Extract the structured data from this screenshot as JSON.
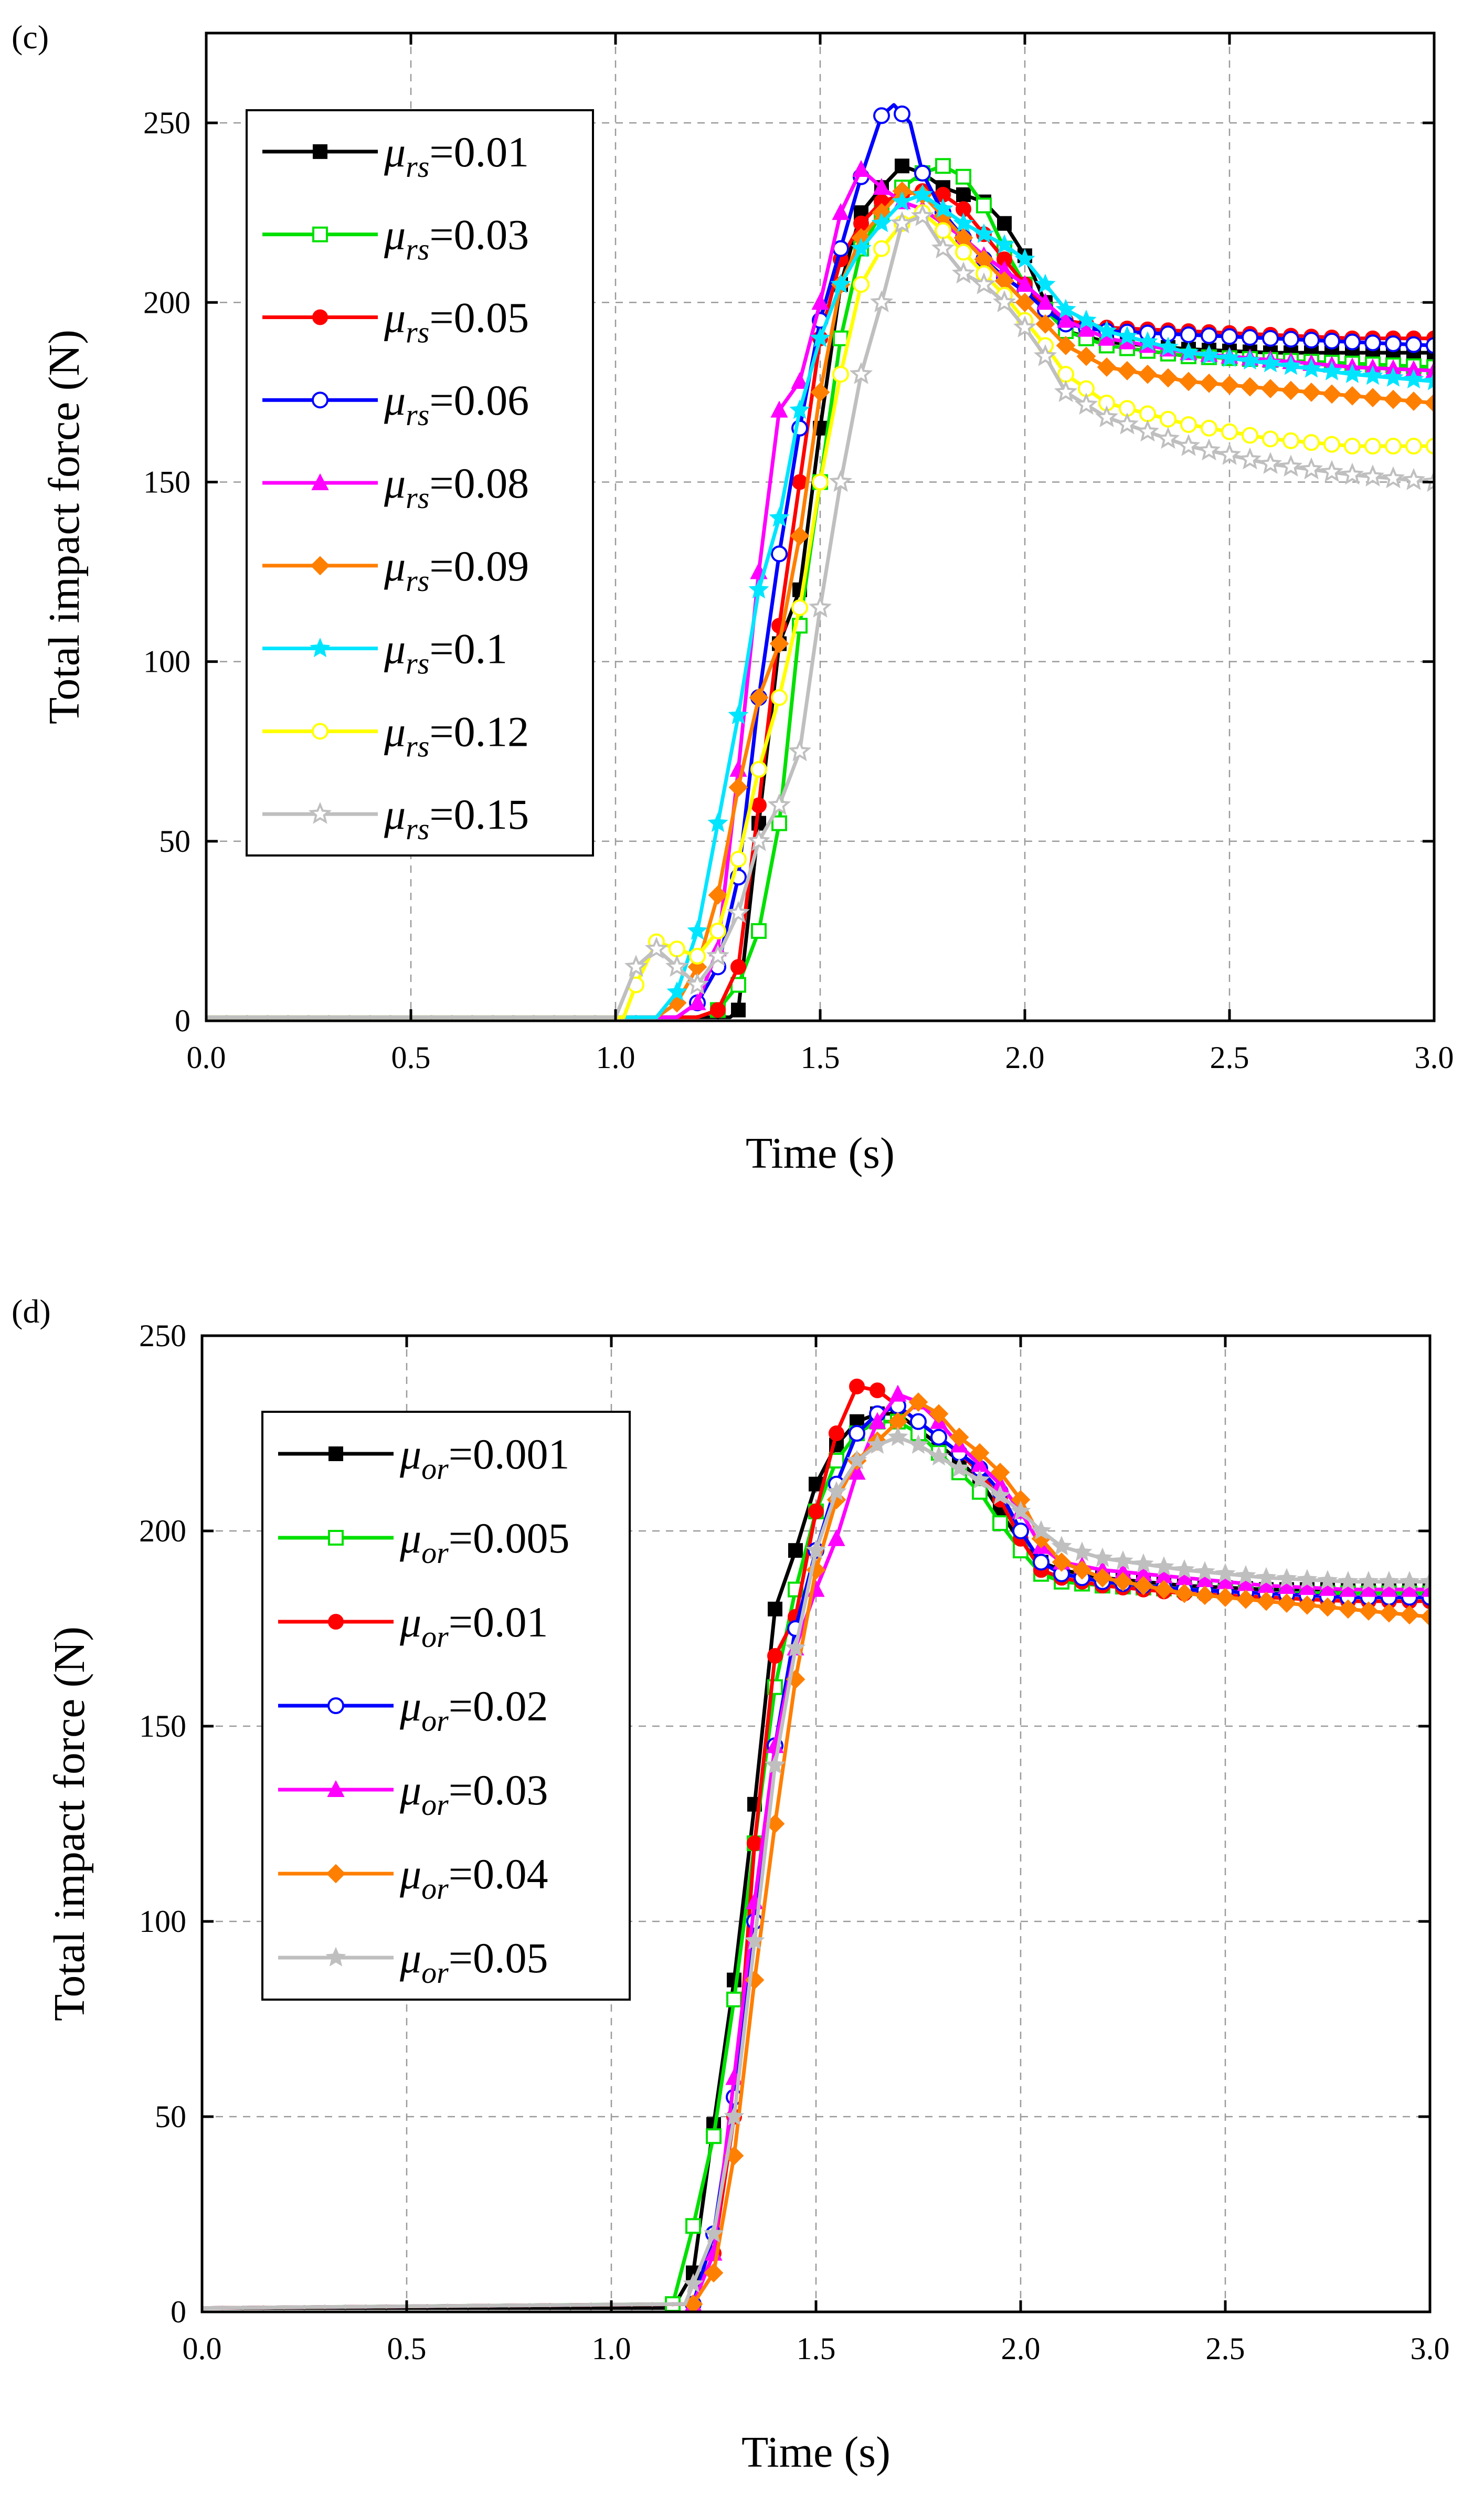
{
  "chart_data": [
    {
      "type": "line",
      "panel_label": "(c)",
      "xlabel": "Time (s)",
      "ylabel": "Total impact force (N)",
      "xlim": [
        0,
        3
      ],
      "ylim": [
        0,
        275
      ],
      "xticks": [
        0,
        0.5,
        1,
        1.5,
        2,
        2.5,
        3
      ],
      "xtick_labels": [
        "0.0",
        "0.5",
        "1.0",
        "1.5",
        "2.0",
        "2.5",
        "3.0"
      ],
      "yticks": [
        0,
        50,
        100,
        150,
        200,
        250
      ],
      "ytick_labels": [
        "0",
        "50",
        "100",
        "150",
        "200",
        "250"
      ],
      "grid": true,
      "legend_position": "top-left",
      "legend_symbol": "μ",
      "legend_subscript": "rs",
      "series": [
        {
          "name": "μrs=0.01",
          "symbol": "μ",
          "sub": "rs",
          "value_text": "=0.01",
          "color": "#000000",
          "marker": "square-filled",
          "x": [
            0,
            1.28,
            1.3,
            1.35,
            1.4,
            1.45,
            1.5,
            1.55,
            1.6,
            1.65,
            1.7,
            1.75,
            1.8,
            1.85,
            1.9,
            1.95,
            2.0,
            2.05,
            2.1,
            2.2,
            2.4,
            2.6,
            2.8,
            3.0
          ],
          "y": [
            1,
            1,
            3,
            55,
            105,
            120,
            165,
            205,
            225,
            232,
            238,
            236,
            232,
            230,
            228,
            222,
            213,
            200,
            192,
            189,
            187,
            186,
            186,
            186
          ]
        },
        {
          "name": "μrs=0.03",
          "symbol": "μ",
          "sub": "rs",
          "value_text": "=0.03",
          "color": "#00e000",
          "marker": "square-open",
          "x": [
            0,
            1.2,
            1.25,
            1.3,
            1.35,
            1.4,
            1.45,
            1.5,
            1.55,
            1.6,
            1.65,
            1.7,
            1.75,
            1.8,
            1.85,
            1.9,
            1.95,
            2.0,
            2.05,
            2.1,
            2.2,
            2.4,
            2.6,
            2.8,
            3.0
          ],
          "y": [
            1,
            1,
            3,
            10,
            25,
            55,
            110,
            150,
            190,
            215,
            225,
            232,
            236,
            238,
            235,
            227,
            215,
            205,
            198,
            192,
            188,
            185,
            184,
            183,
            182
          ]
        },
        {
          "name": "μrs=0.05",
          "symbol": "μ",
          "sub": "rs",
          "value_text": "=0.05",
          "color": "#ff0000",
          "marker": "circle-filled",
          "x": [
            0,
            1.2,
            1.25,
            1.3,
            1.35,
            1.4,
            1.45,
            1.5,
            1.55,
            1.6,
            1.65,
            1.7,
            1.75,
            1.8,
            1.85,
            1.9,
            1.95,
            2.0,
            2.05,
            2.1,
            2.2,
            2.4,
            2.6,
            2.8,
            3.0
          ],
          "y": [
            1,
            1,
            3,
            15,
            60,
            110,
            150,
            190,
            212,
            222,
            228,
            230,
            231,
            230,
            226,
            219,
            212,
            205,
            198,
            195,
            193,
            192,
            191,
            190,
            190
          ]
        },
        {
          "name": "μrs=0.06",
          "symbol": "μ",
          "sub": "rs",
          "value_text": "=0.06",
          "color": "#0000ff",
          "marker": "circle-open",
          "x": [
            0,
            1.15,
            1.2,
            1.25,
            1.3,
            1.35,
            1.4,
            1.45,
            1.5,
            1.55,
            1.6,
            1.65,
            1.68,
            1.72,
            1.75,
            1.8,
            1.85,
            1.9,
            1.95,
            2.0,
            2.05,
            2.1,
            2.2,
            2.4,
            2.6,
            2.8,
            3.0
          ],
          "y": [
            1,
            1,
            5,
            15,
            40,
            90,
            130,
            165,
            195,
            215,
            235,
            252,
            255,
            250,
            236,
            225,
            218,
            212,
            207,
            203,
            198,
            194,
            192,
            191,
            190,
            189,
            188
          ]
        },
        {
          "name": "μrs=0.08",
          "symbol": "μ",
          "sub": "rs",
          "value_text": "=0.08",
          "color": "#ff00ff",
          "marker": "triangle-filled",
          "x": [
            0,
            1.15,
            1.2,
            1.25,
            1.3,
            1.35,
            1.4,
            1.45,
            1.5,
            1.55,
            1.6,
            1.65,
            1.7,
            1.75,
            1.8,
            1.85,
            1.9,
            1.95,
            2.0,
            2.05,
            2.1,
            2.2,
            2.4,
            2.6,
            2.8,
            3.0
          ],
          "y": [
            1,
            1,
            5,
            20,
            70,
            125,
            170,
            178,
            200,
            225,
            237,
            232,
            228,
            226,
            222,
            218,
            213,
            209,
            205,
            200,
            195,
            190,
            186,
            184,
            182,
            181
          ]
        },
        {
          "name": "μrs=0.09",
          "symbol": "μ",
          "sub": "rs",
          "value_text": "=0.09",
          "color": "#ff7f00",
          "marker": "diamond-filled",
          "x": [
            0,
            1.1,
            1.15,
            1.2,
            1.25,
            1.3,
            1.35,
            1.4,
            1.45,
            1.5,
            1.55,
            1.6,
            1.65,
            1.7,
            1.75,
            1.8,
            1.85,
            1.9,
            1.95,
            2.0,
            2.05,
            2.1,
            2.2,
            2.4,
            2.6,
            2.8,
            3.0
          ],
          "y": [
            1,
            1,
            5,
            15,
            35,
            65,
            90,
            105,
            135,
            175,
            205,
            218,
            225,
            231,
            230,
            224,
            218,
            212,
            206,
            200,
            194,
            188,
            182,
            178,
            176,
            174,
            172
          ]
        },
        {
          "name": "μrs=0.1",
          "symbol": "μ",
          "sub": "rs",
          "value_text": "=0.1",
          "color": "#00e5ff",
          "marker": "star-filled",
          "x": [
            0,
            1.1,
            1.15,
            1.2,
            1.25,
            1.3,
            1.35,
            1.4,
            1.45,
            1.5,
            1.55,
            1.6,
            1.65,
            1.7,
            1.75,
            1.8,
            1.85,
            1.9,
            1.95,
            2.0,
            2.05,
            2.1,
            2.2,
            2.4,
            2.6,
            2.8,
            3.0
          ],
          "y": [
            1,
            1,
            8,
            25,
            55,
            85,
            120,
            140,
            170,
            190,
            205,
            215,
            222,
            228,
            230,
            226,
            222,
            219,
            216,
            212,
            205,
            198,
            192,
            186,
            183,
            180,
            178
          ]
        },
        {
          "name": "μrs=0.12",
          "symbol": "μ",
          "sub": "rs",
          "value_text": "=0.12",
          "color": "#ffff00",
          "marker": "circle-open",
          "x": [
            0,
            1.02,
            1.05,
            1.1,
            1.15,
            1.2,
            1.25,
            1.3,
            1.35,
            1.4,
            1.45,
            1.5,
            1.55,
            1.6,
            1.65,
            1.7,
            1.75,
            1.8,
            1.85,
            1.9,
            1.95,
            2.0,
            2.05,
            2.1,
            2.2,
            2.4,
            2.6,
            2.8,
            3.0
          ],
          "y": [
            1,
            1,
            10,
            22,
            20,
            18,
            25,
            45,
            70,
            90,
            115,
            150,
            180,
            205,
            215,
            222,
            225,
            220,
            214,
            208,
            202,
            195,
            188,
            180,
            172,
            166,
            162,
            160,
            160
          ]
        },
        {
          "name": "μrs=0.15",
          "symbol": "μ",
          "sub": "rs",
          "value_text": "=0.15",
          "color": "#bfbfbf",
          "marker": "star-open",
          "x": [
            0,
            1.0,
            1.05,
            1.1,
            1.15,
            1.2,
            1.25,
            1.3,
            1.35,
            1.4,
            1.45,
            1.5,
            1.55,
            1.6,
            1.65,
            1.7,
            1.75,
            1.8,
            1.85,
            1.9,
            1.95,
            2.0,
            2.05,
            2.1,
            2.2,
            2.4,
            2.6,
            2.8,
            3.0
          ],
          "y": [
            1,
            1,
            15,
            20,
            15,
            10,
            18,
            30,
            50,
            60,
            75,
            115,
            150,
            180,
            200,
            222,
            224,
            215,
            208,
            205,
            200,
            193,
            185,
            175,
            168,
            160,
            155,
            152,
            150
          ]
        }
      ]
    },
    {
      "type": "line",
      "panel_label": "(d)",
      "xlabel": "Time (s)",
      "ylabel": "Total impact force (N)",
      "xlim": [
        0,
        3
      ],
      "ylim": [
        0,
        250
      ],
      "xticks": [
        0,
        0.5,
        1,
        1.5,
        2,
        2.5,
        3
      ],
      "xtick_labels": [
        "0.0",
        "0.5",
        "1.0",
        "1.5",
        "2.0",
        "2.5",
        "3.0"
      ],
      "yticks": [
        0,
        50,
        100,
        150,
        200,
        250
      ],
      "ytick_labels": [
        "0",
        "50",
        "100",
        "150",
        "200",
        "250"
      ],
      "grid": true,
      "legend_position": "top-left",
      "legend_symbol": "μ",
      "legend_subscript": "or",
      "series": [
        {
          "name": "μor=0.001",
          "symbol": "μ",
          "sub": "or",
          "value_text": "=0.001",
          "color": "#000000",
          "marker": "square-filled",
          "x": [
            0,
            1.15,
            1.2,
            1.25,
            1.3,
            1.35,
            1.4,
            1.45,
            1.5,
            1.55,
            1.6,
            1.65,
            1.7,
            1.75,
            1.8,
            1.85,
            1.9,
            1.95,
            2.0,
            2.05,
            2.1,
            2.2,
            2.4,
            2.6,
            2.8,
            3.0
          ],
          "y": [
            1,
            1,
            10,
            48,
            85,
            130,
            180,
            195,
            212,
            222,
            228,
            230,
            230,
            226,
            222,
            218,
            213,
            205,
            197,
            192,
            190,
            188,
            186,
            185,
            185,
            185
          ]
        },
        {
          "name": "μor=0.005",
          "symbol": "μ",
          "sub": "or",
          "value_text": "=0.005",
          "color": "#00e000",
          "marker": "square-open",
          "x": [
            0,
            1.15,
            1.2,
            1.25,
            1.3,
            1.35,
            1.4,
            1.45,
            1.5,
            1.55,
            1.6,
            1.65,
            1.7,
            1.75,
            1.8,
            1.85,
            1.9,
            1.95,
            2.0,
            2.05,
            2.1,
            2.2,
            2.4,
            2.6,
            2.8,
            3.0
          ],
          "y": [
            1,
            2,
            22,
            45,
            80,
            120,
            160,
            185,
            205,
            218,
            225,
            228,
            228,
            225,
            220,
            215,
            210,
            202,
            195,
            189,
            187,
            186,
            185,
            184,
            184,
            184
          ]
        },
        {
          "name": "μor=0.01",
          "symbol": "μ",
          "sub": "or",
          "value_text": "=0.01",
          "color": "#ff0000",
          "marker": "circle-filled",
          "x": [
            0,
            1.2,
            1.25,
            1.3,
            1.35,
            1.4,
            1.45,
            1.5,
            1.55,
            1.6,
            1.65,
            1.7,
            1.75,
            1.8,
            1.85,
            1.9,
            1.95,
            2.0,
            2.05,
            2.1,
            2.2,
            2.4,
            2.6,
            2.8,
            3.0
          ],
          "y": [
            1,
            2,
            15,
            50,
            120,
            168,
            178,
            205,
            225,
            237,
            236,
            232,
            228,
            224,
            220,
            215,
            208,
            198,
            190,
            188,
            186,
            184,
            183,
            182,
            182
          ]
        },
        {
          "name": "μor=0.02",
          "symbol": "μ",
          "sub": "or",
          "value_text": "=0.02",
          "color": "#0000ff",
          "marker": "circle-open",
          "x": [
            0,
            1.2,
            1.25,
            1.3,
            1.35,
            1.4,
            1.45,
            1.5,
            1.55,
            1.6,
            1.65,
            1.7,
            1.75,
            1.8,
            1.85,
            1.9,
            1.95,
            2.0,
            2.05,
            2.1,
            2.2,
            2.4,
            2.6,
            2.8,
            3.0
          ],
          "y": [
            1,
            2,
            20,
            55,
            100,
            145,
            175,
            195,
            212,
            225,
            230,
            232,
            228,
            224,
            220,
            216,
            210,
            200,
            192,
            189,
            187,
            185,
            184,
            183,
            183
          ]
        },
        {
          "name": "μor=0.03",
          "symbol": "μ",
          "sub": "or",
          "value_text": "=0.03",
          "color": "#ff00ff",
          "marker": "triangle-filled",
          "x": [
            0,
            1.2,
            1.25,
            1.3,
            1.35,
            1.4,
            1.45,
            1.5,
            1.55,
            1.6,
            1.65,
            1.7,
            1.75,
            1.8,
            1.85,
            1.9,
            1.95,
            2.0,
            2.05,
            2.1,
            2.2,
            2.4,
            2.6,
            2.8,
            3.0
          ],
          "y": [
            1,
            2,
            15,
            60,
            105,
            145,
            170,
            185,
            198,
            215,
            228,
            235,
            233,
            228,
            222,
            217,
            212,
            205,
            196,
            192,
            190,
            188,
            186,
            185,
            185
          ]
        },
        {
          "name": "μor=0.04",
          "symbol": "μ",
          "sub": "or",
          "value_text": "=0.04",
          "color": "#ff7f00",
          "marker": "diamond-filled",
          "x": [
            0,
            1.2,
            1.25,
            1.3,
            1.35,
            1.4,
            1.45,
            1.5,
            1.55,
            1.6,
            1.65,
            1.7,
            1.75,
            1.8,
            1.85,
            1.9,
            1.95,
            2.0,
            2.05,
            2.1,
            2.2,
            2.4,
            2.6,
            2.8,
            3.0
          ],
          "y": [
            1,
            2,
            10,
            40,
            85,
            125,
            162,
            190,
            208,
            218,
            223,
            228,
            233,
            230,
            224,
            220,
            215,
            208,
            198,
            192,
            188,
            184,
            182,
            180,
            178
          ]
        },
        {
          "name": "μor=0.05",
          "symbol": "μ",
          "sub": "or",
          "value_text": "=0.05",
          "color": "#bfbfbf",
          "marker": "star-filled",
          "x": [
            0,
            1.18,
            1.25,
            1.3,
            1.35,
            1.4,
            1.45,
            1.5,
            1.55,
            1.6,
            1.65,
            1.7,
            1.75,
            1.8,
            1.85,
            1.9,
            1.95,
            2.0,
            2.05,
            2.1,
            2.2,
            2.4,
            2.6,
            2.8,
            3.0
          ],
          "y": [
            1,
            2,
            20,
            50,
            95,
            140,
            170,
            195,
            210,
            218,
            222,
            224,
            222,
            219,
            216,
            213,
            209,
            205,
            200,
            196,
            193,
            190,
            188,
            187,
            187
          ]
        }
      ]
    }
  ]
}
